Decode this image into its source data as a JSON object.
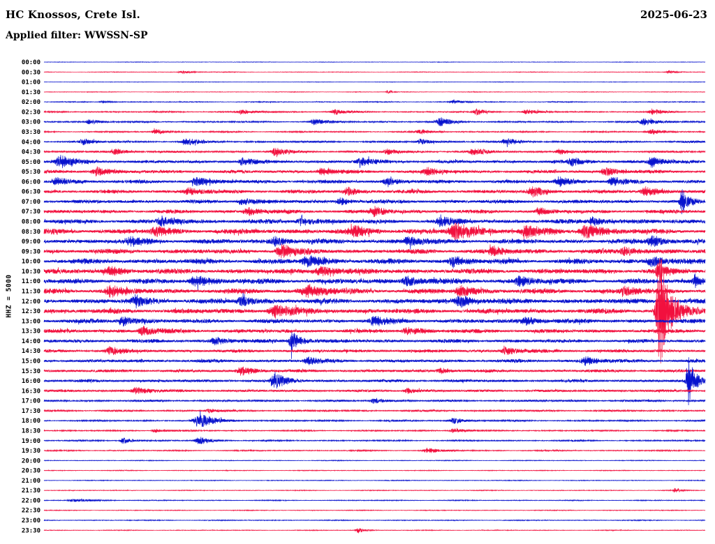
{
  "header": {
    "station_title": "HC Knossos, Crete Isl.",
    "date": "2025-06-23",
    "filter_label": "Applied filter: WWSSN-SP"
  },
  "y_axis_label": "HHZ = 5000",
  "colors": {
    "trace_blue": "#0712CE",
    "trace_red": "#F2103E",
    "text": "#000000",
    "background": "#FFFFFF"
  },
  "chart_data": {
    "type": "line",
    "subtype": "helicorder-seismogram-24h",
    "station": "HC Knossos, Crete Isl.",
    "date": "2025-06-23",
    "filter": "WWSSN-SP",
    "channel_scale_label": "HHZ = 5000",
    "minutes_per_row": 30,
    "row_order": "top-to-bottom, 00:00 to 23:30 UTC, one 30-minute trace per line",
    "legend": "trace color alternates blue (b) / red (r) each half hour; n = background noise amplitude (px); events = [position 0-1 along row, peak amplitude px, width fraction]",
    "axis": {
      "x_range_minutes": [
        0,
        30
      ],
      "grid": false,
      "tick_labels_left": true
    },
    "rows": [
      {
        "t": "00:00",
        "c": "b",
        "n": 0.35,
        "e": []
      },
      {
        "t": "00:30",
        "c": "r",
        "n": 0.4,
        "e": [
          [
            0.21,
            1.8,
            0.01
          ],
          [
            0.945,
            2.2,
            0.008
          ]
        ]
      },
      {
        "t": "01:00",
        "c": "b",
        "n": 0.35,
        "e": []
      },
      {
        "t": "01:30",
        "c": "r",
        "n": 0.4,
        "e": [
          [
            0.52,
            2.2,
            0.004
          ]
        ]
      },
      {
        "t": "02:00",
        "c": "b",
        "n": 0.6,
        "e": [
          [
            0.09,
            1.5,
            0.008
          ],
          [
            0.62,
            2.0,
            0.01
          ]
        ]
      },
      {
        "t": "02:30",
        "c": "r",
        "n": 0.9,
        "e": [
          [
            0.3,
            2.5,
            0.012
          ],
          [
            0.44,
            3.0,
            0.01
          ],
          [
            0.655,
            3.5,
            0.009
          ],
          [
            0.73,
            2.5,
            0.01
          ],
          [
            0.92,
            3.0,
            0.01
          ]
        ]
      },
      {
        "t": "03:00",
        "c": "b",
        "n": 1.0,
        "e": [
          [
            0.07,
            3.0,
            0.01
          ],
          [
            0.41,
            3.5,
            0.012
          ],
          [
            0.6,
            5.0,
            0.01
          ],
          [
            0.91,
            4.0,
            0.014
          ]
        ]
      },
      {
        "t": "03:30",
        "c": "r",
        "n": 0.9,
        "e": [
          [
            0.17,
            3.0,
            0.01
          ],
          [
            0.57,
            2.5,
            0.01
          ],
          [
            0.92,
            3.0,
            0.012
          ]
        ]
      },
      {
        "t": "04:00",
        "c": "b",
        "n": 1.2,
        "e": [
          [
            0.06,
            3.0,
            0.01
          ],
          [
            0.215,
            4.0,
            0.012
          ],
          [
            0.57,
            3.0,
            0.01
          ],
          [
            0.7,
            3.5,
            0.012
          ]
        ]
      },
      {
        "t": "04:30",
        "c": "r",
        "n": 1.3,
        "e": [
          [
            0.11,
            3.0,
            0.012
          ],
          [
            0.35,
            4.0,
            0.012
          ],
          [
            0.52,
            3.0,
            0.01
          ],
          [
            0.65,
            3.5,
            0.012
          ],
          [
            0.78,
            3.0,
            0.01
          ]
        ]
      },
      {
        "t": "05:00",
        "c": "b",
        "n": 2.0,
        "e": [
          [
            0.025,
            7.0,
            0.012
          ],
          [
            0.3,
            4.0,
            0.01
          ],
          [
            0.48,
            4.0,
            0.012
          ],
          [
            0.8,
            4.0,
            0.012
          ],
          [
            0.92,
            6.0,
            0.01
          ]
        ]
      },
      {
        "t": "05:30",
        "c": "r",
        "n": 2.0,
        "e": [
          [
            0.08,
            5.0,
            0.012
          ],
          [
            0.42,
            4.0,
            0.012
          ],
          [
            0.58,
            5.0,
            0.01
          ],
          [
            0.85,
            4.5,
            0.012
          ]
        ]
      },
      {
        "t": "06:00",
        "c": "b",
        "n": 2.2,
        "e": [
          [
            0.02,
            5.0,
            0.01
          ],
          [
            0.23,
            4.0,
            0.012
          ],
          [
            0.52,
            4.0,
            0.01
          ],
          [
            0.78,
            5.0,
            0.012
          ],
          [
            0.86,
            4.0,
            0.01
          ]
        ]
      },
      {
        "t": "06:30",
        "c": "r",
        "n": 2.2,
        "e": [
          [
            0.22,
            4.0,
            0.012
          ],
          [
            0.46,
            4.5,
            0.01
          ],
          [
            0.74,
            5.0,
            0.012
          ],
          [
            0.91,
            5.0,
            0.012
          ]
        ]
      },
      {
        "t": "07:00",
        "c": "b",
        "n": 2.2,
        "e": [
          [
            0.3,
            4.0,
            0.012
          ],
          [
            0.45,
            4.0,
            0.01
          ],
          [
            0.965,
            13.0,
            0.006
          ]
        ]
      },
      {
        "t": "07:30",
        "c": "r",
        "n": 2.2,
        "e": [
          [
            0.31,
            4.0,
            0.012
          ],
          [
            0.5,
            5.0,
            0.012
          ],
          [
            0.75,
            4.0,
            0.01
          ]
        ]
      },
      {
        "t": "08:00",
        "c": "b",
        "n": 2.6,
        "e": [
          [
            0.18,
            5.0,
            0.014
          ],
          [
            0.39,
            5.0,
            0.012
          ],
          [
            0.6,
            4.5,
            0.012
          ],
          [
            0.83,
            5.0,
            0.012
          ]
        ]
      },
      {
        "t": "08:30",
        "c": "r",
        "n": 3.0,
        "e": [
          [
            0.17,
            5.0,
            0.012
          ],
          [
            0.47,
            5.0,
            0.014
          ],
          [
            0.625,
            9.0,
            0.02
          ],
          [
            0.73,
            6.0,
            0.014
          ],
          [
            0.82,
            8.0,
            0.014
          ]
        ]
      },
      {
        "t": "09:00",
        "c": "b",
        "n": 2.8,
        "e": [
          [
            0.13,
            5.0,
            0.012
          ],
          [
            0.35,
            5.0,
            0.012
          ],
          [
            0.55,
            5.0,
            0.014
          ],
          [
            0.92,
            6.0,
            0.012
          ]
        ]
      },
      {
        "t": "09:30",
        "c": "r",
        "n": 2.8,
        "e": [
          [
            0.36,
            7.0,
            0.014
          ],
          [
            0.68,
            5.0,
            0.012
          ],
          [
            0.88,
            5.0,
            0.012
          ]
        ]
      },
      {
        "t": "10:00",
        "c": "b",
        "n": 3.0,
        "e": [
          [
            0.4,
            6.0,
            0.014
          ],
          [
            0.62,
            5.0,
            0.012
          ],
          [
            0.92,
            6.0,
            0.012
          ]
        ]
      },
      {
        "t": "10:30",
        "c": "r",
        "n": 3.0,
        "e": [
          [
            0.1,
            5.0,
            0.012
          ],
          [
            0.42,
            6.0,
            0.014
          ],
          [
            0.93,
            8.0,
            0.008
          ]
        ]
      },
      {
        "t": "11:00",
        "c": "b",
        "n": 3.0,
        "e": [
          [
            0.23,
            6.0,
            0.014
          ],
          [
            0.55,
            6.0,
            0.012
          ],
          [
            0.72,
            5.0,
            0.012
          ],
          [
            0.985,
            7.0,
            0.006
          ]
        ]
      },
      {
        "t": "11:30",
        "c": "r",
        "n": 3.0,
        "e": [
          [
            0.1,
            6.0,
            0.012
          ],
          [
            0.4,
            7.0,
            0.016
          ],
          [
            0.63,
            6.0,
            0.012
          ],
          [
            0.88,
            5.0,
            0.012
          ]
        ]
      },
      {
        "t": "12:00",
        "c": "b",
        "n": 3.0,
        "e": [
          [
            0.14,
            6.0,
            0.012
          ],
          [
            0.3,
            5.0,
            0.012
          ],
          [
            0.63,
            6.0,
            0.014
          ]
        ]
      },
      {
        "t": "12:30",
        "c": "r",
        "n": 3.0,
        "e": [
          [
            0.35,
            7.0,
            0.016
          ],
          [
            0.932,
            72.0,
            0.01
          ]
        ]
      },
      {
        "t": "13:00",
        "c": "b",
        "n": 2.6,
        "e": [
          [
            0.12,
            5.0,
            0.012
          ],
          [
            0.5,
            5.0,
            0.012
          ],
          [
            0.73,
            5.0,
            0.012
          ]
        ]
      },
      {
        "t": "13:30",
        "c": "r",
        "n": 2.4,
        "e": [
          [
            0.15,
            5.0,
            0.012
          ],
          [
            0.55,
            4.0,
            0.012
          ]
        ]
      },
      {
        "t": "14:00",
        "c": "b",
        "n": 2.2,
        "e": [
          [
            0.26,
            4.0,
            0.012
          ],
          [
            0.375,
            13.0,
            0.008
          ]
        ]
      },
      {
        "t": "14:30",
        "c": "r",
        "n": 2.0,
        "e": [
          [
            0.1,
            4.0,
            0.012
          ],
          [
            0.7,
            4.0,
            0.012
          ]
        ]
      },
      {
        "t": "15:00",
        "c": "b",
        "n": 2.0,
        "e": [
          [
            0.4,
            4.0,
            0.01
          ],
          [
            0.82,
            4.5,
            0.012
          ]
        ]
      },
      {
        "t": "15:30",
        "c": "r",
        "n": 1.8,
        "e": [
          [
            0.3,
            5.0,
            0.014
          ],
          [
            0.6,
            3.0,
            0.01
          ]
        ]
      },
      {
        "t": "16:00",
        "c": "b",
        "n": 1.8,
        "e": [
          [
            0.35,
            9.0,
            0.01
          ],
          [
            0.975,
            28.0,
            0.006
          ]
        ]
      },
      {
        "t": "16:30",
        "c": "r",
        "n": 1.5,
        "e": [
          [
            0.14,
            4.0,
            0.012
          ],
          [
            0.55,
            3.0,
            0.01
          ]
        ]
      },
      {
        "t": "17:00",
        "c": "b",
        "n": 1.3,
        "e": [
          [
            0.5,
            3.0,
            0.01
          ]
        ]
      },
      {
        "t": "17:30",
        "c": "r",
        "n": 1.1,
        "e": [
          [
            0.25,
            2.0,
            0.01
          ]
        ]
      },
      {
        "t": "18:00",
        "c": "b",
        "n": 1.0,
        "e": [
          [
            0.235,
            8.0,
            0.014
          ],
          [
            0.62,
            3.0,
            0.012
          ]
        ]
      },
      {
        "t": "18:30",
        "c": "r",
        "n": 0.9,
        "e": [
          [
            0.17,
            2.0,
            0.01
          ],
          [
            0.62,
            2.5,
            0.012
          ]
        ]
      },
      {
        "t": "19:00",
        "c": "b",
        "n": 0.9,
        "e": [
          [
            0.12,
            4.0,
            0.008
          ],
          [
            0.235,
            5.0,
            0.01
          ]
        ]
      },
      {
        "t": "19:30",
        "c": "r",
        "n": 0.8,
        "e": [
          [
            0.58,
            3.0,
            0.012
          ]
        ]
      },
      {
        "t": "20:00",
        "c": "b",
        "n": 0.5,
        "e": []
      },
      {
        "t": "20:30",
        "c": "r",
        "n": 0.5,
        "e": []
      },
      {
        "t": "21:00",
        "c": "b",
        "n": 0.5,
        "e": []
      },
      {
        "t": "21:30",
        "c": "r",
        "n": 0.5,
        "e": [
          [
            0.955,
            3.0,
            0.005
          ]
        ]
      },
      {
        "t": "22:00",
        "c": "b",
        "n": 0.6,
        "e": [
          [
            0.05,
            1.5,
            0.02
          ]
        ]
      },
      {
        "t": "22:30",
        "c": "r",
        "n": 0.5,
        "e": []
      },
      {
        "t": "23:00",
        "c": "b",
        "n": 0.6,
        "e": []
      },
      {
        "t": "23:30",
        "c": "r",
        "n": 0.5,
        "e": [
          [
            0.475,
            3.5,
            0.006
          ]
        ]
      }
    ]
  }
}
